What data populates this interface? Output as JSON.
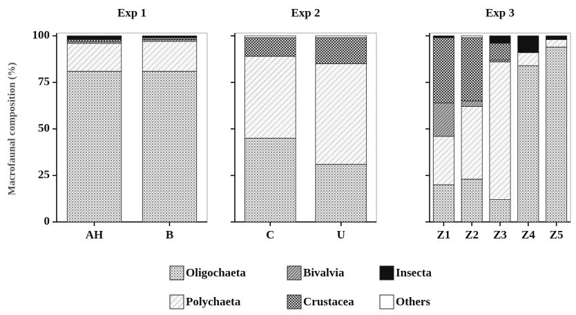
{
  "chart_data": [
    {
      "type": "bar",
      "stacked": true,
      "title": "Exp 1",
      "ylabel": "Macrofaunal composition (%)",
      "categories": [
        "AH",
        "B"
      ],
      "ylim": [
        0,
        100
      ],
      "yticks": [
        0,
        25,
        50,
        75,
        100
      ],
      "series": [
        {
          "name": "Oligochaeta",
          "color": "#d4d4d4",
          "pattern": "dots",
          "values": [
            81,
            81
          ]
        },
        {
          "name": "Polychaeta",
          "color": "#f2f2f2",
          "pattern": "hatch",
          "values": [
            15,
            16
          ]
        },
        {
          "name": "Bivalvia",
          "color": "#777777",
          "pattern": "dense-hatch",
          "values": [
            1,
            1
          ]
        },
        {
          "name": "Crustacea",
          "color": "#888888",
          "pattern": "checker",
          "values": [
            1,
            1
          ]
        },
        {
          "name": "Insecta",
          "color": "#111111",
          "pattern": "solid",
          "values": [
            2,
            1
          ]
        },
        {
          "name": "Others",
          "color": "#ffffff",
          "pattern": "solid",
          "values": [
            0,
            0
          ]
        }
      ]
    },
    {
      "type": "bar",
      "stacked": true,
      "title": "Exp 2",
      "categories": [
        "C",
        "U"
      ],
      "ylim": [
        0,
        100
      ],
      "series": [
        {
          "name": "Oligochaeta",
          "color": "#d4d4d4",
          "pattern": "dots",
          "values": [
            45,
            31
          ]
        },
        {
          "name": "Polychaeta",
          "color": "#f2f2f2",
          "pattern": "hatch",
          "values": [
            44,
            54
          ]
        },
        {
          "name": "Bivalvia",
          "color": "#777777",
          "pattern": "dense-hatch",
          "values": [
            0,
            0
          ]
        },
        {
          "name": "Crustacea",
          "color": "#888888",
          "pattern": "checker",
          "values": [
            10,
            14
          ]
        },
        {
          "name": "Insecta",
          "color": "#111111",
          "pattern": "solid",
          "values": [
            0,
            0
          ]
        },
        {
          "name": "Others",
          "color": "#ffffff",
          "pattern": "solid",
          "values": [
            1,
            1
          ]
        }
      ]
    },
    {
      "type": "bar",
      "stacked": true,
      "title": "Exp 3",
      "categories": [
        "Z1",
        "Z2",
        "Z3",
        "Z4",
        "Z5"
      ],
      "ylim": [
        0,
        100
      ],
      "series": [
        {
          "name": "Oligochaeta",
          "color": "#d4d4d4",
          "pattern": "dots",
          "values": [
            20,
            23,
            12,
            84,
            94
          ]
        },
        {
          "name": "Polychaeta",
          "color": "#f2f2f2",
          "pattern": "hatch",
          "values": [
            26,
            39,
            74,
            7,
            4
          ]
        },
        {
          "name": "Bivalvia",
          "color": "#777777",
          "pattern": "dense-hatch",
          "values": [
            18,
            3,
            1,
            0,
            0
          ]
        },
        {
          "name": "Crustacea",
          "color": "#888888",
          "pattern": "checker",
          "values": [
            35,
            34,
            9,
            0,
            0
          ]
        },
        {
          "name": "Insecta",
          "color": "#111111",
          "pattern": "solid",
          "values": [
            1,
            0,
            4,
            9,
            2
          ]
        },
        {
          "name": "Others",
          "color": "#ffffff",
          "pattern": "solid",
          "values": [
            0,
            1,
            0,
            0,
            0
          ]
        }
      ]
    }
  ]
}
